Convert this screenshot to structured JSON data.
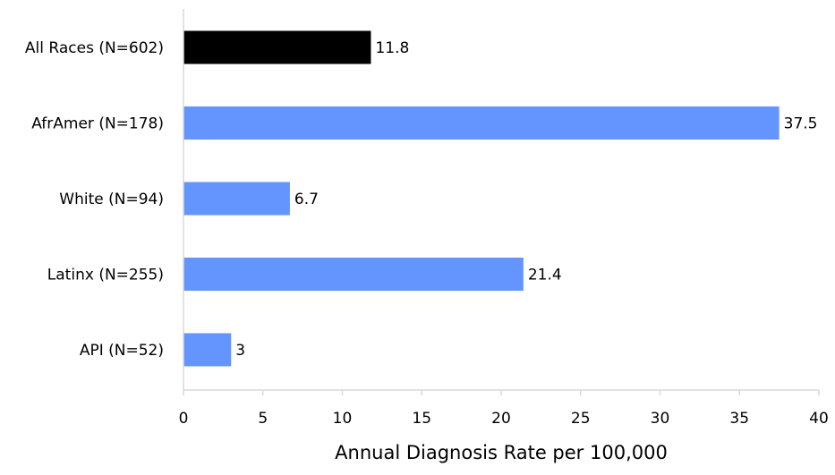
{
  "chart_data": {
    "type": "bar",
    "orientation": "horizontal",
    "categories": [
      "All Races (N=602)",
      "AfrAmer (N=178)",
      "White (N=94)",
      "Latinx (N=255)",
      "API (N=52)"
    ],
    "values": [
      11.8,
      37.5,
      6.7,
      21.4,
      3
    ],
    "value_labels": [
      "11.8",
      "37.5",
      "6.7",
      "21.4",
      "3"
    ],
    "bar_colors": [
      "#000000",
      "#6495ff",
      "#6495ff",
      "#6495ff",
      "#6495ff"
    ],
    "title": "",
    "xlabel": "Annual Diagnosis Rate per 100,000",
    "ylabel": "",
    "xlim": [
      0,
      40
    ],
    "xticks": [
      0,
      5,
      10,
      15,
      20,
      25,
      30,
      35,
      40
    ],
    "grid": false,
    "legend": "none"
  }
}
